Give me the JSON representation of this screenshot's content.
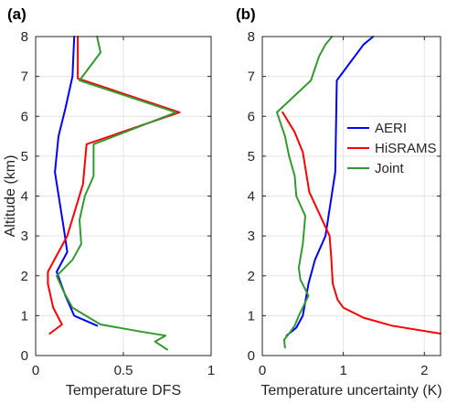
{
  "chart_data": [
    {
      "type": "line",
      "panel_label": "(a)",
      "xlabel": "Temperature DFS",
      "ylabel": "Altitude (km)",
      "xlim": [
        0,
        1
      ],
      "ylim": [
        0,
        8
      ],
      "xticks": [
        0,
        0.5,
        1
      ],
      "xtick_labels": [
        "0",
        "0.5",
        "1"
      ],
      "yticks": [
        0,
        1,
        2,
        3,
        4,
        5,
        6,
        7,
        8
      ],
      "ytick_labels": [
        "0",
        "1",
        "2",
        "3",
        "4",
        "5",
        "6",
        "7",
        "8"
      ],
      "grid": true,
      "series": [
        {
          "name": "AERI",
          "color": "#0000ff",
          "points": [
            [
              0.35,
              0.75
            ],
            [
              0.22,
              1.0
            ],
            [
              0.17,
              1.5
            ],
            [
              0.12,
              2.1
            ],
            [
              0.18,
              2.6
            ],
            [
              0.16,
              3.2
            ],
            [
              0.11,
              4.6
            ],
            [
              0.13,
              5.5
            ],
            [
              0.17,
              6.2
            ],
            [
              0.21,
              7.0
            ],
            [
              0.22,
              8.0
            ]
          ]
        },
        {
          "name": "HiSRAMS",
          "color": "#ff0000",
          "points": [
            [
              0.08,
              0.55
            ],
            [
              0.15,
              0.78
            ],
            [
              0.1,
              1.2
            ],
            [
              0.07,
              1.8
            ],
            [
              0.07,
              2.1
            ],
            [
              0.18,
              3.0
            ],
            [
              0.27,
              4.3
            ],
            [
              0.29,
              5.3
            ],
            [
              0.82,
              6.1
            ],
            [
              0.24,
              6.95
            ],
            [
              0.24,
              8.0
            ]
          ]
        },
        {
          "name": "Joint",
          "color": "#339933",
          "points": [
            [
              0.75,
              0.15
            ],
            [
              0.68,
              0.35
            ],
            [
              0.74,
              0.5
            ],
            [
              0.6,
              0.6
            ],
            [
              0.37,
              0.78
            ],
            [
              0.21,
              1.2
            ],
            [
              0.16,
              1.6
            ],
            [
              0.12,
              2.0
            ],
            [
              0.21,
              2.4
            ],
            [
              0.26,
              2.8
            ],
            [
              0.25,
              3.4
            ],
            [
              0.28,
              4.0
            ],
            [
              0.33,
              4.5
            ],
            [
              0.33,
              5.3
            ],
            [
              0.8,
              6.1
            ],
            [
              0.25,
              6.9
            ],
            [
              0.37,
              7.6
            ],
            [
              0.35,
              8.0
            ]
          ]
        }
      ]
    },
    {
      "type": "line",
      "panel_label": "(b)",
      "xlabel": "Temperature uncertainty (K)",
      "ylabel": "",
      "xlim": [
        0,
        2.2
      ],
      "ylim": [
        0,
        8
      ],
      "xticks": [
        0,
        1,
        2
      ],
      "xtick_labels": [
        "0",
        "1",
        "2"
      ],
      "yticks": [
        0,
        1,
        2,
        3,
        4,
        5,
        6,
        7,
        8
      ],
      "ytick_labels": [
        "0",
        "1",
        "2",
        "3",
        "4",
        "5",
        "6",
        "7",
        "8"
      ],
      "grid": true,
      "legend": {
        "position": "right",
        "entries": [
          "AERI",
          "HiSRAMS",
          "Joint"
        ]
      },
      "series": [
        {
          "name": "AERI",
          "color": "#0000ff",
          "points": [
            [
              0.3,
              0.5
            ],
            [
              0.42,
              0.7
            ],
            [
              0.5,
              1.0
            ],
            [
              0.57,
              1.8
            ],
            [
              0.65,
              2.4
            ],
            [
              0.78,
              3.0
            ],
            [
              0.9,
              4.6
            ],
            [
              0.92,
              6.9
            ],
            [
              1.25,
              7.8
            ],
            [
              1.37,
              8.0
            ]
          ]
        },
        {
          "name": "HiSRAMS",
          "color": "#ff0000",
          "points": [
            [
              2.2,
              0.55
            ],
            [
              1.6,
              0.75
            ],
            [
              1.25,
              0.95
            ],
            [
              1.0,
              1.2
            ],
            [
              0.93,
              1.4
            ],
            [
              0.87,
              1.8
            ],
            [
              0.85,
              2.5
            ],
            [
              0.83,
              3.0
            ],
            [
              0.58,
              4.1
            ],
            [
              0.5,
              5.1
            ],
            [
              0.4,
              5.6
            ],
            [
              0.25,
              6.1
            ]
          ]
        },
        {
          "name": "Joint",
          "color": "#339933",
          "points": [
            [
              0.28,
              0.2
            ],
            [
              0.27,
              0.4
            ],
            [
              0.33,
              0.55
            ],
            [
              0.4,
              0.75
            ],
            [
              0.45,
              1.0
            ],
            [
              0.57,
              1.5
            ],
            [
              0.47,
              1.9
            ],
            [
              0.45,
              2.2
            ],
            [
              0.5,
              2.8
            ],
            [
              0.53,
              3.5
            ],
            [
              0.42,
              4.0
            ],
            [
              0.4,
              4.5
            ],
            [
              0.33,
              5.0
            ],
            [
              0.28,
              5.5
            ],
            [
              0.18,
              6.1
            ],
            [
              0.6,
              6.9
            ],
            [
              0.7,
              7.5
            ],
            [
              0.78,
              7.8
            ],
            [
              0.86,
              8.0
            ]
          ]
        }
      ]
    }
  ]
}
